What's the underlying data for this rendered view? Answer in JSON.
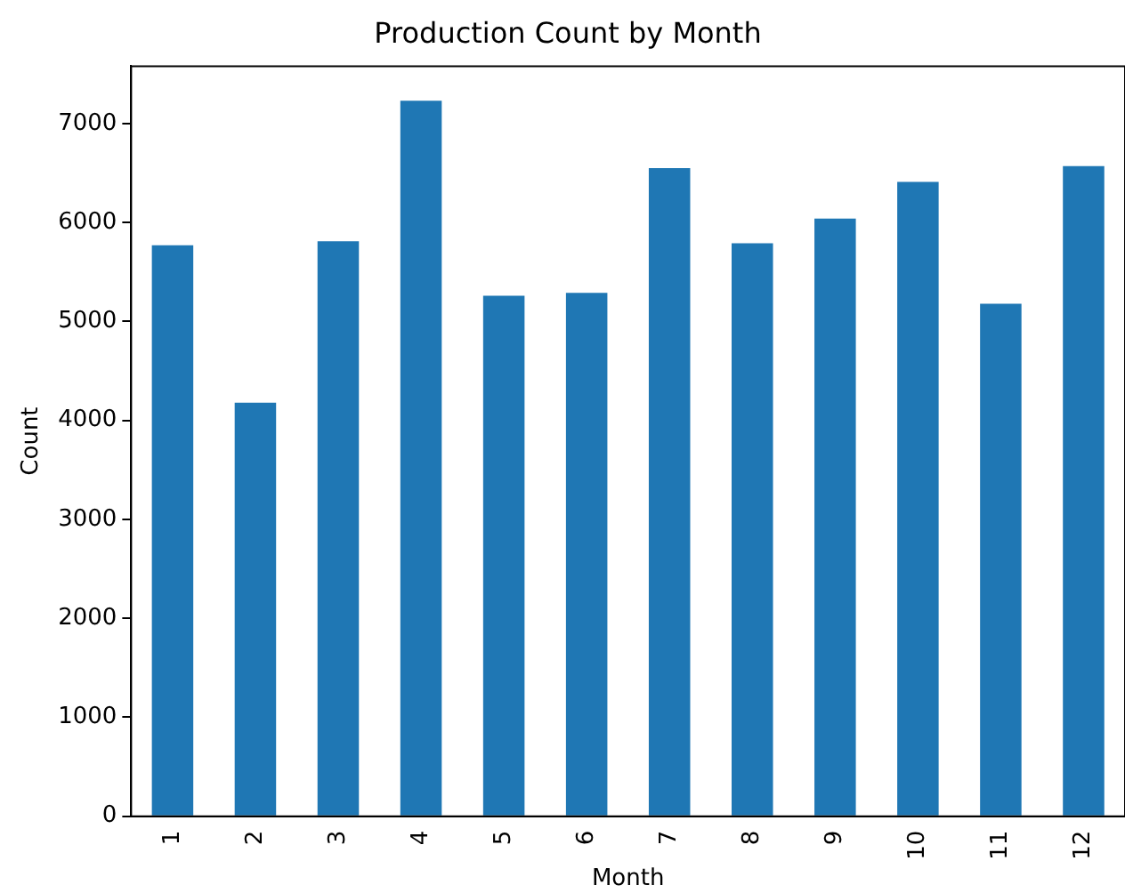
{
  "chart_data": {
    "type": "bar",
    "title": "Production Count by Month",
    "xlabel": "Month",
    "ylabel": "Count",
    "categories": [
      "1",
      "2",
      "3",
      "4",
      "5",
      "6",
      "7",
      "8",
      "9",
      "10",
      "11",
      "12"
    ],
    "values": [
      5770,
      4180,
      5810,
      7230,
      5260,
      5290,
      6550,
      5790,
      6040,
      6410,
      5180,
      6570
    ],
    "color": "#1f77b4",
    "ylim": [
      0,
      7580
    ],
    "yticks": [
      0,
      1000,
      2000,
      3000,
      4000,
      5000,
      6000,
      7000
    ],
    "grid": false,
    "legend": false
  }
}
